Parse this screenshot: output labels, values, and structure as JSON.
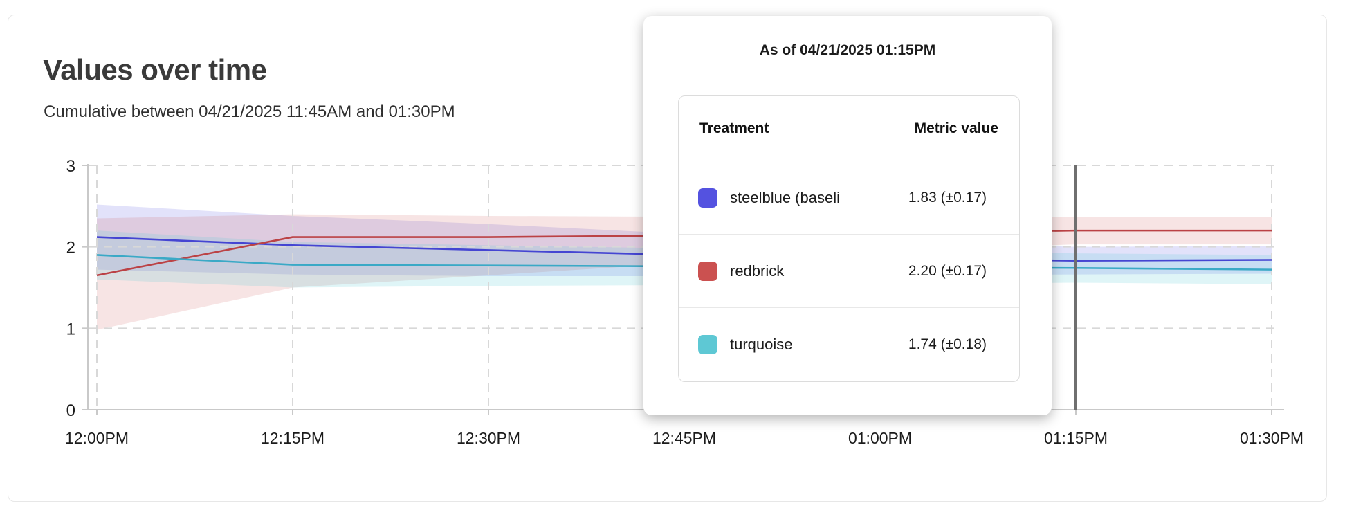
{
  "card": {
    "title": "Values over time",
    "subtitle": "Cumulative between 04/21/2025 11:45AM and 01:30PM"
  },
  "tooltip": {
    "title": "As of 04/21/2025 01:15PM",
    "columns": {
      "treatment": "Treatment",
      "metric": "Metric value"
    },
    "rows": [
      {
        "label": "steelblue (baseli",
        "value": "1.83 (±0.17)",
        "swatch": "#5452e0"
      },
      {
        "label": "redbrick",
        "value": "2.20 (±0.17)",
        "swatch": "#cb5150"
      },
      {
        "label": "turquoise",
        "value": "1.74 (±0.18)",
        "swatch": "#5ec8d4"
      }
    ]
  },
  "chart_data": {
    "type": "line",
    "title": "Values over time",
    "x_labels": [
      "12:00PM",
      "12:15PM",
      "12:30PM",
      "12:45PM",
      "01:00PM",
      "01:15PM",
      "01:30PM"
    ],
    "y_ticks": [
      0,
      1,
      2,
      3
    ],
    "ylim": [
      0,
      3
    ],
    "grid": "dashed",
    "legend_position": "tooltip",
    "hover_index": 5,
    "hover_line_color": "#6f6f6f",
    "grid_color": "#d8d8d8",
    "axis_color": "#c9c9c9",
    "label_color": "#1b1b1b",
    "series": [
      {
        "name": "steelblue (baseline)",
        "color": "#4545d2",
        "band_color": "rgba(93,93,226,0.18)",
        "values": [
          2.12,
          2.02,
          1.96,
          1.9,
          1.86,
          1.83,
          1.84
        ],
        "band_upper": [
          2.52,
          2.38,
          2.28,
          2.16,
          2.07,
          2.0,
          2.01
        ],
        "band_lower": [
          1.72,
          1.66,
          1.64,
          1.64,
          1.65,
          1.66,
          1.67
        ]
      },
      {
        "name": "redbrick",
        "color": "#bb4245",
        "band_color": "rgba(205,85,85,0.16)",
        "values": [
          1.65,
          2.12,
          2.12,
          2.14,
          2.17,
          2.2,
          2.2
        ],
        "band_upper": [
          2.35,
          2.4,
          2.38,
          2.37,
          2.37,
          2.37,
          2.37
        ],
        "band_lower": [
          0.98,
          1.5,
          1.65,
          1.8,
          1.95,
          2.03,
          2.03
        ]
      },
      {
        "name": "turquoise",
        "color": "#3aa9c6",
        "band_color": "rgba(96,205,214,0.20)",
        "values": [
          1.9,
          1.78,
          1.77,
          1.76,
          1.75,
          1.74,
          1.72
        ],
        "band_upper": [
          2.2,
          2.06,
          2.02,
          1.98,
          1.95,
          1.92,
          1.9
        ],
        "band_lower": [
          1.6,
          1.5,
          1.52,
          1.53,
          1.54,
          1.56,
          1.54
        ]
      }
    ]
  }
}
